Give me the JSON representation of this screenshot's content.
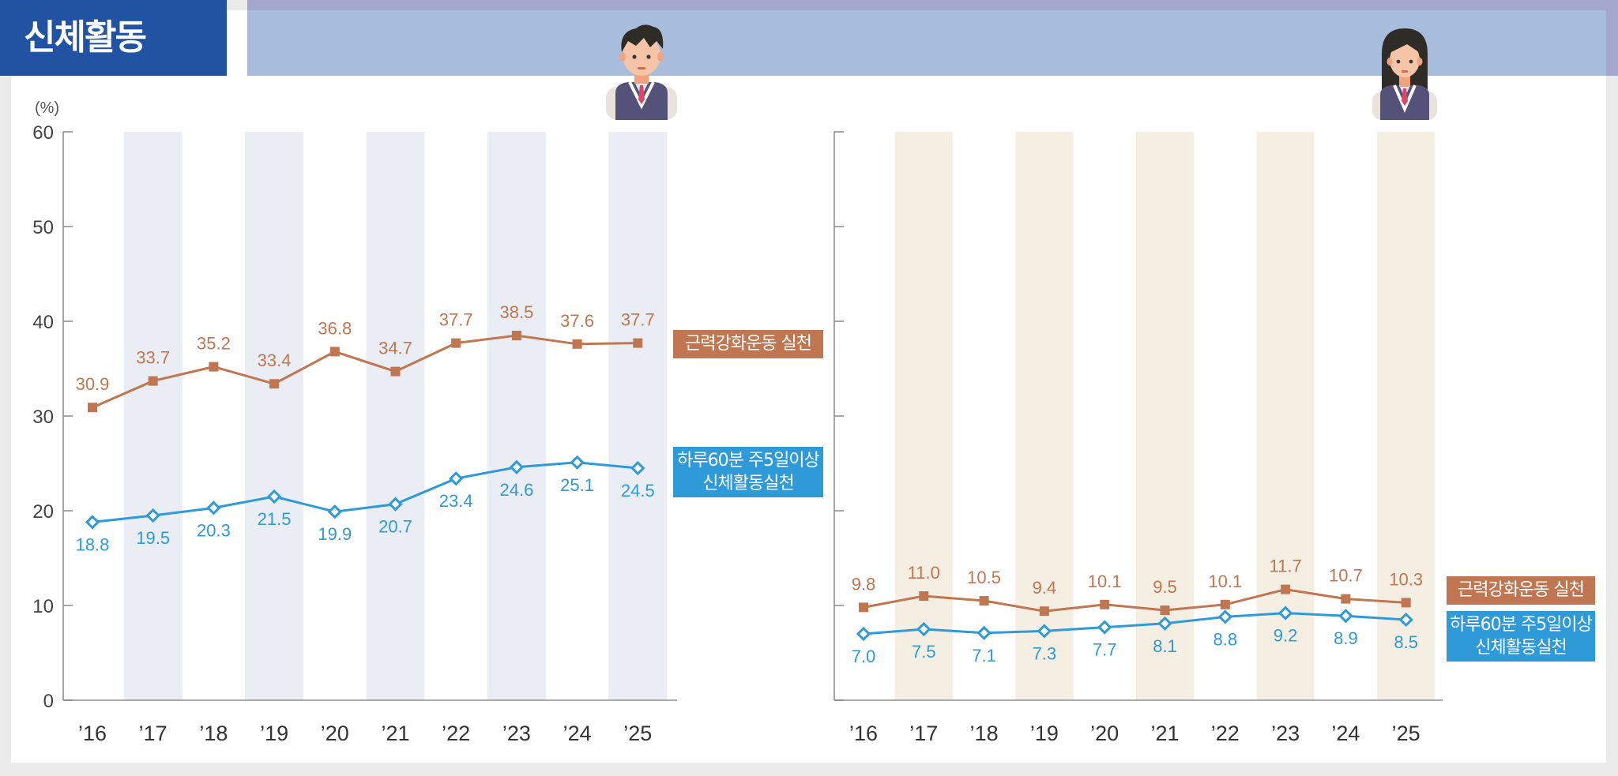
{
  "header": {
    "title": "신체활동"
  },
  "colors": {
    "strength": "#C07650",
    "activity": "#2E9AD8",
    "male_band": "#EAEDF3",
    "female_band": "#F5EEE2",
    "title_bg": "#2253A3",
    "header_bar": "#A8BCDC"
  },
  "unit_label": "(%)",
  "male": {
    "icon": "boy-student-icon",
    "legend": {
      "strength": "근력강화운동 실천",
      "activity_line1": "하루60분 주5일이상",
      "activity_line2": "신체활동실천"
    }
  },
  "female": {
    "icon": "girl-student-icon",
    "legend": {
      "strength": "근력강화운동 실천",
      "activity_line1": "하루60분 주5일이상",
      "activity_line2": "신체활동실천"
    }
  },
  "chart_data": [
    {
      "type": "line",
      "title": "신체활동 - 남학생",
      "xlabel": "",
      "ylabel": "(%)",
      "ylim": [
        0,
        60
      ],
      "yticks": [
        0,
        10,
        20,
        30,
        40,
        50,
        60
      ],
      "categories": [
        "'16",
        "'17",
        "'18",
        "'19",
        "'20",
        "'21",
        "'22",
        "'23",
        "'24",
        "'25"
      ],
      "series": [
        {
          "name": "근력강화운동 실천",
          "values": [
            30.9,
            33.7,
            35.2,
            33.4,
            36.8,
            34.7,
            37.7,
            38.5,
            37.6,
            37.7
          ]
        },
        {
          "name": "하루60분 주5일이상 신체활동실천",
          "values": [
            18.8,
            19.5,
            20.3,
            21.5,
            19.9,
            20.7,
            23.4,
            24.6,
            25.1,
            24.5
          ]
        }
      ],
      "grid": false,
      "legend_position": "right"
    },
    {
      "type": "line",
      "title": "신체활동 - 여학생",
      "xlabel": "",
      "ylabel": "(%)",
      "ylim": [
        0,
        60
      ],
      "yticks": [
        0,
        10,
        20,
        30,
        40,
        50,
        60
      ],
      "categories": [
        "'16",
        "'17",
        "'18",
        "'19",
        "'20",
        "'21",
        "'22",
        "'23",
        "'24",
        "'25"
      ],
      "series": [
        {
          "name": "근력강화운동 실천",
          "values": [
            9.8,
            11.0,
            10.5,
            9.4,
            10.1,
            9.5,
            10.1,
            11.7,
            10.7,
            10.3
          ]
        },
        {
          "name": "하루60분 주5일이상 신체활동실천",
          "values": [
            7.0,
            7.5,
            7.1,
            7.3,
            7.7,
            8.1,
            8.8,
            9.2,
            8.9,
            8.5
          ]
        }
      ],
      "grid": false,
      "legend_position": "right"
    }
  ]
}
